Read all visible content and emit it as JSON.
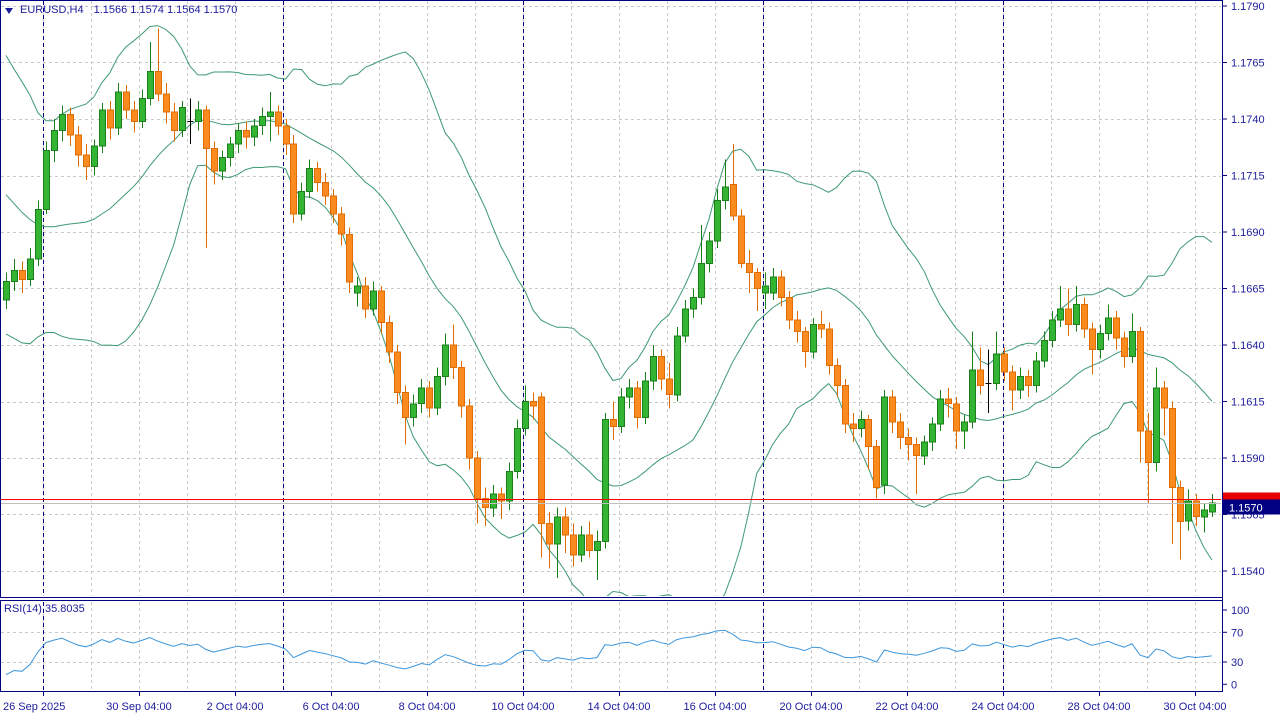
{
  "window": {
    "symbol": "EURUSD,H4",
    "ohlc_readout": "1.1566 1.1574 1.1564 1.1570"
  },
  "rsi_panel": {
    "label": "RSI(14) 35.8035",
    "axis_labels": [
      "100",
      "70",
      "30",
      "0"
    ],
    "level_lines": [
      70,
      30
    ]
  },
  "price_axis": {
    "labels": [
      "1.1790",
      "1.1765",
      "1.1740",
      "1.1715",
      "1.1690",
      "1.1665",
      "1.1640",
      "1.1615",
      "1.1590",
      "1.1565",
      "1.1540"
    ]
  },
  "time_axis": {
    "labels": [
      "26 Sep 2025",
      "30 Sep 04:00",
      "2 Oct 04:00",
      "6 Oct 04:00",
      "8 Oct 04:00",
      "10 Oct 04:00",
      "14 Oct 04:00",
      "16 Oct 04:00",
      "20 Oct 04:00",
      "22 Oct 04:00",
      "24 Oct 04:00",
      "28 Oct 04:00",
      "30 Oct 04:00"
    ]
  },
  "price_tags": {
    "bid": {
      "text": "1.1570",
      "bg": "#000080",
      "fg": "#ffffff"
    },
    "ask": {
      "bg": "#e60000"
    }
  },
  "colors": {
    "grid": "#c9c9c9",
    "week_separator": "#000080",
    "border": "#000080",
    "axis_text": "#1c1c9c",
    "bull_fill": "#33b533",
    "bull_stroke": "#1a7e1a",
    "bear_fill": "#fb8b1e",
    "bear_stroke": "#df6c00",
    "doji": "#000000",
    "bollinger": "#3d9970",
    "rsi_line": "#3c96dc",
    "ask_line": "#ff0000",
    "bid_line": "#c0c0c0"
  },
  "chart_data": {
    "type": "candlestick",
    "symbol": "EURUSD",
    "timeframe": "H4",
    "title": "EURUSD,H4",
    "y_axis": {
      "min": 1.154,
      "max": 1.179,
      "step": 0.0025
    },
    "rsi_axis": {
      "min": 0,
      "max": 100
    },
    "current_bar": {
      "open": 1.1566,
      "high": 1.1574,
      "low": 1.1564,
      "close": 1.157
    },
    "rsi_value": 35.8035,
    "indicators": {
      "bollinger": {
        "period": 20,
        "deviation": 2
      },
      "rsi": {
        "period": 14
      }
    },
    "pre_history_closes": [
      1.1758,
      1.1752,
      1.1746,
      1.1741,
      1.1748,
      1.1742,
      1.1735,
      1.1729,
      1.1722,
      1.1716,
      1.171,
      1.1704,
      1.1697,
      1.1691,
      1.1685,
      1.1678,
      1.1672,
      1.1667,
      1.1662,
      1.1665
    ],
    "ohlc": [
      [
        1.166,
        1.1672,
        1.1656,
        1.1668
      ],
      [
        1.1668,
        1.1678,
        1.1664,
        1.1673
      ],
      [
        1.1673,
        1.1677,
        1.1663,
        1.1669
      ],
      [
        1.1669,
        1.1683,
        1.1666,
        1.1678
      ],
      [
        1.1678,
        1.1704,
        1.1675,
        1.17
      ],
      [
        1.17,
        1.173,
        1.1698,
        1.1726
      ],
      [
        1.1726,
        1.174,
        1.1721,
        1.1735
      ],
      [
        1.1735,
        1.1746,
        1.173,
        1.1742
      ],
      [
        1.1742,
        1.1745,
        1.1728,
        1.1733
      ],
      [
        1.1733,
        1.1737,
        1.1719,
        1.1724
      ],
      [
        1.1724,
        1.1729,
        1.1713,
        1.1719
      ],
      [
        1.1719,
        1.1731,
        1.1715,
        1.1728
      ],
      [
        1.1728,
        1.1747,
        1.1725,
        1.1744
      ],
      [
        1.1744,
        1.1748,
        1.1731,
        1.1736
      ],
      [
        1.1736,
        1.1756,
        1.1733,
        1.1752
      ],
      [
        1.1752,
        1.1755,
        1.174,
        1.1744
      ],
      [
        1.1744,
        1.1748,
        1.1734,
        1.1739
      ],
      [
        1.1739,
        1.1753,
        1.1736,
        1.1749
      ],
      [
        1.1749,
        1.1774,
        1.1746,
        1.1761
      ],
      [
        1.1761,
        1.178,
        1.1748,
        1.1751
      ],
      [
        1.1751,
        1.1756,
        1.1738,
        1.1743
      ],
      [
        1.1743,
        1.1747,
        1.173,
        1.1735
      ],
      [
        1.1735,
        1.1748,
        1.1732,
        1.1745
      ],
      [
        1.1739,
        1.1749,
        1.1729,
        1.1739
      ],
      [
        1.1739,
        1.1748,
        1.1735,
        1.1744
      ],
      [
        1.1744,
        1.1746,
        1.1683,
        1.1727
      ],
      [
        1.1727,
        1.173,
        1.1711,
        1.1717
      ],
      [
        1.1717,
        1.1726,
        1.1713,
        1.1723
      ],
      [
        1.1723,
        1.1732,
        1.1719,
        1.1729
      ],
      [
        1.1729,
        1.1738,
        1.1725,
        1.1735
      ],
      [
        1.1735,
        1.1739,
        1.1727,
        1.1732
      ],
      [
        1.1732,
        1.174,
        1.1728,
        1.1737
      ],
      [
        1.1737,
        1.1745,
        1.1733,
        1.1741
      ],
      [
        1.1741,
        1.1752,
        1.173,
        1.1743
      ],
      [
        1.1743,
        1.1746,
        1.1733,
        1.1737
      ],
      [
        1.1737,
        1.174,
        1.1724,
        1.1729
      ],
      [
        1.1729,
        1.1733,
        1.1694,
        1.1698
      ],
      [
        1.1698,
        1.1712,
        1.1695,
        1.1708
      ],
      [
        1.1708,
        1.1722,
        1.1705,
        1.1718
      ],
      [
        1.1718,
        1.1721,
        1.1708,
        1.1712
      ],
      [
        1.1712,
        1.1716,
        1.1702,
        1.1706
      ],
      [
        1.1706,
        1.1709,
        1.1694,
        1.1698
      ],
      [
        1.1698,
        1.1701,
        1.1684,
        1.1689
      ],
      [
        1.1689,
        1.1692,
        1.1663,
        1.1668
      ],
      [
        1.1663,
        1.167,
        1.1657,
        1.1666
      ],
      [
        1.1666,
        1.167,
        1.1652,
        1.1656
      ],
      [
        1.1656,
        1.1668,
        1.1653,
        1.1664
      ],
      [
        1.1664,
        1.1666,
        1.1645,
        1.165
      ],
      [
        1.165,
        1.1653,
        1.1632,
        1.1637
      ],
      [
        1.1637,
        1.164,
        1.1614,
        1.1619
      ],
      [
        1.1619,
        1.1622,
        1.1596,
        1.1608
      ],
      [
        1.1608,
        1.1618,
        1.1604,
        1.1614
      ],
      [
        1.1614,
        1.1625,
        1.161,
        1.1621
      ],
      [
        1.1621,
        1.1624,
        1.1608,
        1.1612
      ],
      [
        1.1612,
        1.163,
        1.1609,
        1.1626
      ],
      [
        1.1626,
        1.1645,
        1.1622,
        1.164
      ],
      [
        1.164,
        1.1649,
        1.1625,
        1.163
      ],
      [
        1.163,
        1.1633,
        1.1608,
        1.1613
      ],
      [
        1.1613,
        1.1616,
        1.1585,
        1.159
      ],
      [
        1.159,
        1.1593,
        1.1561,
        1.1572
      ],
      [
        1.1572,
        1.1577,
        1.156,
        1.1568
      ],
      [
        1.1568,
        1.1578,
        1.1564,
        1.1574
      ],
      [
        1.1574,
        1.1577,
        1.1563,
        1.1571
      ],
      [
        1.1571,
        1.1588,
        1.1567,
        1.1584
      ],
      [
        1.1584,
        1.1607,
        1.1581,
        1.1603
      ],
      [
        1.1603,
        1.1622,
        1.16,
        1.1615
      ],
      [
        1.1615,
        1.1619,
        1.1607,
        1.1613
      ],
      [
        1.1617,
        1.1619,
        1.1546,
        1.1561
      ],
      [
        1.1561,
        1.1566,
        1.1541,
        1.1552
      ],
      [
        1.1552,
        1.1568,
        1.1537,
        1.1564
      ],
      [
        1.1564,
        1.1568,
        1.1548,
        1.1556
      ],
      [
        1.1556,
        1.1561,
        1.1542,
        1.1547
      ],
      [
        1.1547,
        1.156,
        1.1544,
        1.1556
      ],
      [
        1.1556,
        1.1562,
        1.1546,
        1.1549
      ],
      [
        1.1549,
        1.1558,
        1.1536,
        1.1553
      ],
      [
        1.1553,
        1.161,
        1.155,
        1.1607
      ],
      [
        1.1607,
        1.1615,
        1.1598,
        1.1604
      ],
      [
        1.1604,
        1.1621,
        1.1601,
        1.1617
      ],
      [
        1.1617,
        1.1625,
        1.1612,
        1.1621
      ],
      [
        1.1621,
        1.1624,
        1.1603,
        1.1608
      ],
      [
        1.1608,
        1.1628,
        1.1605,
        1.1624
      ],
      [
        1.1624,
        1.164,
        1.162,
        1.1635
      ],
      [
        1.1635,
        1.1638,
        1.162,
        1.1625
      ],
      [
        1.1625,
        1.1632,
        1.1612,
        1.1618
      ],
      [
        1.1618,
        1.1648,
        1.1615,
        1.1644
      ],
      [
        1.1644,
        1.166,
        1.1641,
        1.1656
      ],
      [
        1.1656,
        1.1665,
        1.1652,
        1.1661
      ],
      [
        1.1661,
        1.1693,
        1.1658,
        1.1676
      ],
      [
        1.1676,
        1.169,
        1.1672,
        1.1686
      ],
      [
        1.1686,
        1.1709,
        1.1683,
        1.1704
      ],
      [
        1.1704,
        1.1722,
        1.17,
        1.171
      ],
      [
        1.1711,
        1.1729,
        1.1695,
        1.1697
      ],
      [
        1.1697,
        1.17,
        1.1674,
        1.1676
      ],
      [
        1.1676,
        1.1682,
        1.1663,
        1.1672
      ],
      [
        1.1672,
        1.1674,
        1.1655,
        1.1665
      ],
      [
        1.1663,
        1.1672,
        1.1656,
        1.1666
      ],
      [
        1.1663,
        1.1674,
        1.166,
        1.167
      ],
      [
        1.167,
        1.1673,
        1.1657,
        1.1661
      ],
      [
        1.1661,
        1.1664,
        1.1647,
        1.1651
      ],
      [
        1.1651,
        1.1655,
        1.1641,
        1.1646
      ],
      [
        1.1646,
        1.1648,
        1.163,
        1.1637
      ],
      [
        1.1637,
        1.1652,
        1.1634,
        1.1649
      ],
      [
        1.1649,
        1.1655,
        1.1643,
        1.1647
      ],
      [
        1.1647,
        1.165,
        1.1627,
        1.1631
      ],
      [
        1.1631,
        1.1634,
        1.1617,
        1.1622
      ],
      [
        1.1622,
        1.1625,
        1.1601,
        1.1605
      ],
      [
        1.1605,
        1.161,
        1.1597,
        1.1603
      ],
      [
        1.1603,
        1.1611,
        1.1599,
        1.1607
      ],
      [
        1.1607,
        1.1609,
        1.1585,
        1.1595
      ],
      [
        1.1595,
        1.1598,
        1.1572,
        1.1577
      ],
      [
        1.1578,
        1.162,
        1.1574,
        1.1617
      ],
      [
        1.1617,
        1.162,
        1.1601,
        1.1606
      ],
      [
        1.1606,
        1.161,
        1.1594,
        1.1599
      ],
      [
        1.1599,
        1.1603,
        1.1589,
        1.1596
      ],
      [
        1.1596,
        1.1599,
        1.1574,
        1.1591
      ],
      [
        1.1591,
        1.16,
        1.1587,
        1.1597
      ],
      [
        1.1597,
        1.1608,
        1.1593,
        1.1605
      ],
      [
        1.1605,
        1.162,
        1.1602,
        1.1616
      ],
      [
        1.1616,
        1.1621,
        1.1608,
        1.1614
      ],
      [
        1.1614,
        1.1617,
        1.1594,
        1.1602
      ],
      [
        1.1602,
        1.1609,
        1.1594,
        1.1606
      ],
      [
        1.1606,
        1.1646,
        1.1603,
        1.1629
      ],
      [
        1.1629,
        1.1639,
        1.1618,
        1.1622
      ],
      [
        1.1623,
        1.1638,
        1.161,
        1.1623
      ],
      [
        1.1623,
        1.1646,
        1.162,
        1.1636
      ],
      [
        1.1636,
        1.1639,
        1.1624,
        1.1628
      ],
      [
        1.1628,
        1.1631,
        1.1611,
        1.162
      ],
      [
        1.162,
        1.163,
        1.1616,
        1.1626
      ],
      [
        1.1626,
        1.1629,
        1.1617,
        1.1622
      ],
      [
        1.1622,
        1.1637,
        1.1619,
        1.1633
      ],
      [
        1.1633,
        1.1646,
        1.163,
        1.1642
      ],
      [
        1.1642,
        1.1655,
        1.1639,
        1.1651
      ],
      [
        1.1651,
        1.1666,
        1.1648,
        1.1656
      ],
      [
        1.1656,
        1.1665,
        1.1644,
        1.1649
      ],
      [
        1.1649,
        1.1666,
        1.1646,
        1.1658
      ],
      [
        1.1658,
        1.1661,
        1.1643,
        1.1647
      ],
      [
        1.1647,
        1.165,
        1.1627,
        1.1638
      ],
      [
        1.1638,
        1.1649,
        1.1634,
        1.1645
      ],
      [
        1.1645,
        1.1658,
        1.1642,
        1.1652
      ],
      [
        1.1652,
        1.1655,
        1.1638,
        1.1643
      ],
      [
        1.1643,
        1.1646,
        1.163,
        1.1635
      ],
      [
        1.1635,
        1.1654,
        1.1632,
        1.1646
      ],
      [
        1.1646,
        1.1648,
        1.1588,
        1.1602
      ],
      [
        1.1602,
        1.161,
        1.157,
        1.1588
      ],
      [
        1.1588,
        1.163,
        1.1584,
        1.1621
      ],
      [
        1.1621,
        1.1624,
        1.16,
        1.1612
      ],
      [
        1.1612,
        1.1615,
        1.1552,
        1.1577
      ],
      [
        1.1577,
        1.158,
        1.1545,
        1.1562
      ],
      [
        1.1562,
        1.1576,
        1.1558,
        1.1571
      ],
      [
        1.1571,
        1.1574,
        1.156,
        1.1564
      ],
      [
        1.1564,
        1.157,
        1.1557,
        1.1567
      ],
      [
        1.1566,
        1.1574,
        1.1564,
        1.157
      ]
    ]
  }
}
